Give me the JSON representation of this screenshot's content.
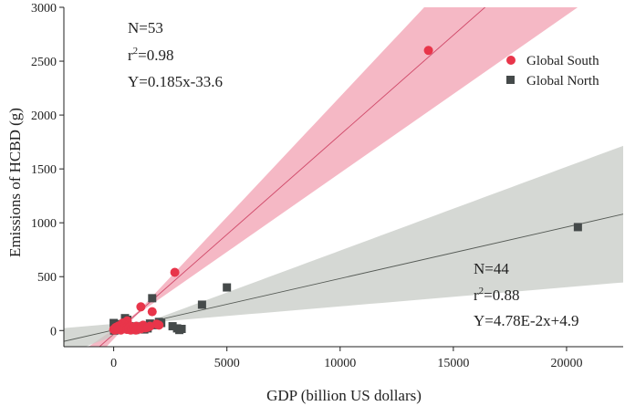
{
  "chart_data": {
    "type": "scatter",
    "xlabel": "GDP (billion US dollars)",
    "ylabel": "Emissions of HCBD (g)",
    "xlim": [
      -2200,
      22500
    ],
    "ylim": [
      -150,
      3000
    ],
    "xticks": [
      0,
      5000,
      10000,
      15000,
      20000
    ],
    "yticks": [
      0,
      500,
      1000,
      1500,
      2000,
      2500,
      3000
    ],
    "xtick_labels": [
      "0",
      "5000",
      "10000",
      "15000",
      "20000"
    ],
    "ytick_labels": [
      "0",
      "500",
      "1000",
      "1500",
      "2000",
      "2500",
      "3000"
    ],
    "grid": false,
    "legend_position": "top-right",
    "series": [
      {
        "name": "Global South",
        "color": "#e8354a",
        "marker": "circle",
        "fit": {
          "slope": 0.185,
          "intercept": -33.6,
          "band_color": "#f2a0b2",
          "line_color": "#d04a6a",
          "band_width": 0.012
        },
        "annotation": {
          "n": "N=53",
          "r2_prefix": "r",
          "r2_sup": "2",
          "r2_value": "=0.98",
          "equation": "Y=0.185x-33.6"
        },
        "points": [
          [
            13900,
            2600
          ],
          [
            2700,
            540
          ],
          [
            1200,
            220
          ],
          [
            1700,
            175
          ],
          [
            1900,
            60
          ],
          [
            600,
            90
          ],
          [
            400,
            70
          ],
          [
            300,
            50
          ],
          [
            200,
            40
          ],
          [
            100,
            30
          ],
          [
            0,
            10
          ],
          [
            50,
            5
          ],
          [
            150,
            15
          ],
          [
            250,
            20
          ],
          [
            350,
            25
          ],
          [
            500,
            35
          ],
          [
            700,
            45
          ],
          [
            800,
            30
          ],
          [
            900,
            20
          ],
          [
            1000,
            40
          ],
          [
            1100,
            30
          ],
          [
            1300,
            50
          ],
          [
            1400,
            25
          ],
          [
            450,
            55
          ],
          [
            550,
            15
          ],
          [
            650,
            10
          ],
          [
            750,
            5
          ],
          [
            850,
            25
          ],
          [
            950,
            15
          ],
          [
            1050,
            10
          ],
          [
            120,
            20
          ],
          [
            220,
            10
          ],
          [
            320,
            5
          ],
          [
            420,
            15
          ],
          [
            520,
            30
          ],
          [
            620,
            20
          ],
          [
            720,
            35
          ],
          [
            820,
            10
          ],
          [
            30,
            15
          ],
          [
            80,
            25
          ],
          [
            180,
            35
          ],
          [
            280,
            45
          ],
          [
            380,
            30
          ],
          [
            480,
            20
          ],
          [
            580,
            10
          ],
          [
            680,
            25
          ],
          [
            780,
            15
          ],
          [
            880,
            30
          ],
          [
            980,
            5
          ],
          [
            1200,
            15
          ],
          [
            1500,
            30
          ],
          [
            1600,
            40
          ],
          [
            2000,
            50
          ]
        ]
      },
      {
        "name": "Global North",
        "color": "#454a4a",
        "marker": "square",
        "fit": {
          "slope": 0.0478,
          "intercept": 4.9,
          "band_color": "#c7cbc5",
          "line_color": "#555a55",
          "band_width": 0.005
        },
        "annotation": {
          "n": "N=44",
          "r2_prefix": "r",
          "r2_sup": "2",
          "r2_value": "=0.88",
          "equation": "Y=4.78E-2x+4.9"
        },
        "points": [
          [
            20500,
            960
          ],
          [
            5000,
            400
          ],
          [
            3900,
            240
          ],
          [
            1700,
            300
          ],
          [
            1600,
            65
          ],
          [
            2800,
            20
          ],
          [
            2900,
            5
          ],
          [
            1400,
            30
          ],
          [
            1350,
            10
          ],
          [
            2000,
            80
          ],
          [
            1800,
            50
          ],
          [
            500,
            115
          ],
          [
            600,
            100
          ],
          [
            0,
            70
          ],
          [
            100,
            60
          ],
          [
            200,
            40
          ],
          [
            300,
            30
          ],
          [
            400,
            20
          ],
          [
            700,
            40
          ],
          [
            800,
            20
          ],
          [
            900,
            10
          ],
          [
            1000,
            30
          ],
          [
            1100,
            15
          ],
          [
            1200,
            25
          ],
          [
            1300,
            40
          ],
          [
            50,
            10
          ],
          [
            150,
            5
          ],
          [
            250,
            15
          ],
          [
            350,
            25
          ],
          [
            450,
            35
          ],
          [
            550,
            45
          ],
          [
            650,
            30
          ],
          [
            750,
            20
          ],
          [
            850,
            10
          ],
          [
            950,
            5
          ],
          [
            1050,
            15
          ],
          [
            1150,
            20
          ],
          [
            1250,
            35
          ],
          [
            120,
            30
          ],
          [
            20,
            0
          ],
          [
            1500,
            20
          ],
          [
            2100,
            70
          ],
          [
            2600,
            40
          ],
          [
            3000,
            15
          ]
        ]
      }
    ]
  }
}
